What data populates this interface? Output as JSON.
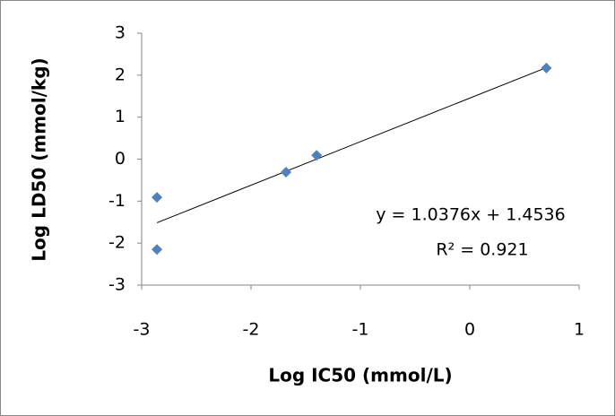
{
  "chart_data": {
    "type": "scatter",
    "x_label": "Log IC50 (mmol/L)",
    "y_label": "Log LD50 (mmol/kg)",
    "x": [
      -2.86,
      -2.86,
      -1.68,
      -1.4,
      0.7
    ],
    "values": [
      -0.91,
      -2.15,
      -0.31,
      0.09,
      2.17
    ],
    "color": "#4f81bd",
    "xlim": [
      -3,
      1
    ],
    "xticks": [
      -3,
      -2,
      -1,
      0,
      1
    ],
    "ylim": [
      -3,
      3
    ],
    "yticks": [
      -3,
      -2,
      -1,
      0,
      1,
      2,
      3
    ],
    "grid": false,
    "trendline": {
      "slope": 1.0376,
      "intercept": 1.4536
    },
    "annotations": [
      "y = 1.0376x + 1.4536",
      "R² = 0.921"
    ]
  }
}
